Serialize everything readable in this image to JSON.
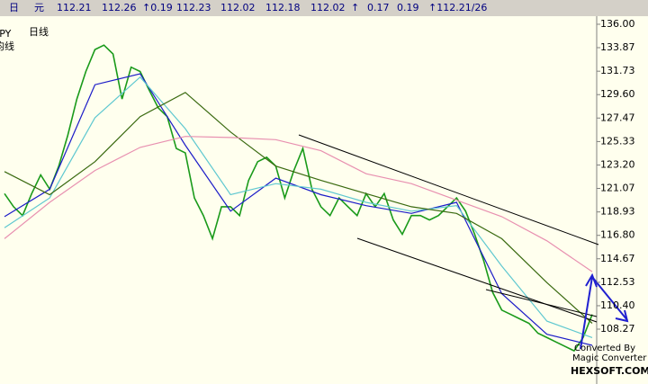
{
  "header": {
    "items": [
      "日",
      "元",
      "112.21",
      "112.26",
      "↑0.19",
      "112.23",
      "112.02",
      "112.18",
      "112.02",
      "↑",
      "0.17",
      "0.19",
      "↑112.21/26"
    ]
  },
  "labels": {
    "symbol": "JPY",
    "period": "日线",
    "indicator": "均线"
  },
  "watermark": {
    "line1": "Converted By",
    "line2": "Magic Converter",
    "line3": "HEXSOFT.COM"
  },
  "chart_data": {
    "type": "line",
    "series": [
      {
        "color": "#1a9a1a",
        "values": [
          120.6,
          119.4,
          118.6,
          120.6,
          122.3,
          121.0,
          123.1,
          125.9,
          129.2,
          131.7,
          133.7,
          134.1,
          133.3,
          129.2,
          132.1,
          131.7,
          130.0,
          128.4,
          127.6,
          124.7,
          124.3,
          120.2,
          118.6,
          116.5,
          119.4,
          119.4,
          118.6,
          121.8,
          123.5,
          123.9,
          123.1,
          120.2,
          122.7,
          124.7,
          121.0,
          119.4,
          118.6,
          120.2,
          119.4,
          118.6,
          120.6,
          119.4,
          120.6,
          118.2,
          116.9,
          118.6,
          118.6,
          118.2,
          118.6,
          119.4,
          120.2,
          119.0,
          116.9,
          114.5,
          111.6,
          110.0,
          109.6,
          109.2,
          108.8,
          107.9,
          107.5,
          107.1,
          106.7,
          106.3,
          107.5,
          109.6
        ]
      },
      {
        "color": "#1c1cc8",
        "values": [
          118.5,
          121,
          130.5,
          131.5,
          125,
          119,
          122,
          120.5,
          119.5,
          118.8,
          119.8,
          111.5,
          107.8,
          106.8
        ]
      },
      {
        "color": "#5fc8d0",
        "values": [
          117.5,
          120.2,
          127.5,
          131.2,
          126.5,
          120.5,
          121.5,
          121,
          119.8,
          119,
          119.5,
          114,
          109,
          107.5
        ]
      },
      {
        "color": "#3a6a10",
        "values": [
          122.6,
          120.5,
          123.5,
          127.6,
          129.8,
          126.2,
          123.1,
          121.8,
          120.6,
          119.4,
          118.8,
          116.5,
          112.5,
          108.8
        ]
      },
      {
        "color": "#e890b0",
        "values": [
          116.5,
          119.8,
          122.7,
          124.8,
          125.8,
          125.7,
          125.5,
          124.5,
          122.4,
          121.5,
          120,
          118.5,
          116.3,
          113.5
        ]
      }
    ],
    "ylim": [
      105.08,
      136.57
    ],
    "yticks": [
      {
        "value": 136,
        "label": "136.00"
      },
      133.87,
      131.73,
      {
        "value": 129.6,
        "label": "129.60"
      },
      127.47,
      125.33,
      {
        "value": 123.2,
        "label": "123.20"
      },
      121.07,
      118.93,
      {
        "value": 116.8,
        "label": "116.80"
      },
      114.67,
      112.53,
      {
        "value": 110.4,
        "label": "110.40"
      },
      108.27
    ],
    "grid": false
  }
}
